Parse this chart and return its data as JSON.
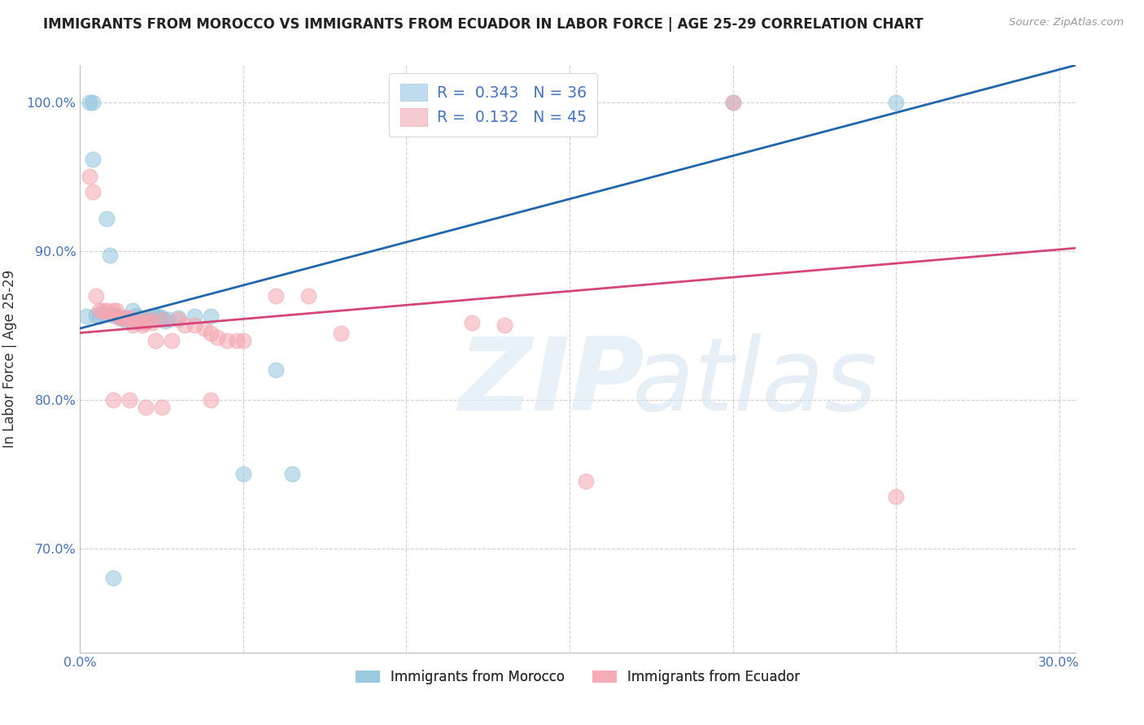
{
  "title": "IMMIGRANTS FROM MOROCCO VS IMMIGRANTS FROM ECUADOR IN LABOR FORCE | AGE 25-29 CORRELATION CHART",
  "source": "Source: ZipAtlas.com",
  "ylabel_text": "In Labor Force | Age 25-29",
  "x_min": 0.0,
  "x_max": 0.305,
  "y_min": 0.63,
  "y_max": 1.025,
  "y_ticks": [
    0.7,
    0.8,
    0.9,
    1.0
  ],
  "morocco_color": "#92c5de",
  "ecuador_color": "#f4a6b0",
  "morocco_line_color": "#2166ac",
  "ecuador_line_color": "#d6457a",
  "morocco_R": "0.343",
  "morocco_N": "36",
  "ecuador_R": "0.132",
  "ecuador_N": "45",
  "background_color": "#ffffff",
  "grid_color": "#cccccc",
  "morocco_line_x0": 0.0,
  "morocco_line_y0": 0.848,
  "morocco_line_x1": 0.305,
  "morocco_line_y1": 1.025,
  "ecuador_line_x0": 0.0,
  "ecuador_line_y0": 0.845,
  "ecuador_line_x1": 0.305,
  "ecuador_line_y1": 0.902,
  "morocco_x": [
    0.002,
    0.003,
    0.004,
    0.004,
    0.005,
    0.006,
    0.007,
    0.008,
    0.009,
    0.01,
    0.011,
    0.012,
    0.013,
    0.014,
    0.015,
    0.016,
    0.017,
    0.018,
    0.019,
    0.02,
    0.021,
    0.022,
    0.023,
    0.024,
    0.025,
    0.026,
    0.027,
    0.03,
    0.035,
    0.04,
    0.05,
    0.06,
    0.065,
    0.2,
    0.25,
    0.01
  ],
  "morocco_y": [
    0.856,
    1.0,
    1.0,
    0.962,
    0.857,
    0.856,
    0.858,
    0.922,
    0.897,
    0.857,
    0.857,
    0.855,
    0.855,
    0.853,
    0.854,
    0.86,
    0.857,
    0.855,
    0.854,
    0.853,
    0.854,
    0.856,
    0.856,
    0.856,
    0.855,
    0.853,
    0.854,
    0.855,
    0.856,
    0.856,
    0.75,
    0.82,
    0.75,
    1.0,
    1.0,
    0.68
  ],
  "ecuador_x": [
    0.003,
    0.004,
    0.005,
    0.006,
    0.007,
    0.008,
    0.009,
    0.01,
    0.011,
    0.012,
    0.013,
    0.014,
    0.015,
    0.016,
    0.017,
    0.018,
    0.019,
    0.02,
    0.021,
    0.022,
    0.023,
    0.025,
    0.028,
    0.03,
    0.032,
    0.035,
    0.038,
    0.04,
    0.042,
    0.045,
    0.048,
    0.05,
    0.06,
    0.07,
    0.08,
    0.12,
    0.13,
    0.155,
    0.2,
    0.25,
    0.01,
    0.015,
    0.02,
    0.025,
    0.04
  ],
  "ecuador_y": [
    0.95,
    0.94,
    0.87,
    0.86,
    0.86,
    0.86,
    0.858,
    0.86,
    0.86,
    0.855,
    0.855,
    0.855,
    0.855,
    0.85,
    0.854,
    0.852,
    0.85,
    0.852,
    0.854,
    0.852,
    0.84,
    0.854,
    0.84,
    0.854,
    0.85,
    0.85,
    0.848,
    0.845,
    0.842,
    0.84,
    0.84,
    0.84,
    0.87,
    0.87,
    0.845,
    0.852,
    0.85,
    0.745,
    1.0,
    0.735,
    0.8,
    0.8,
    0.795,
    0.795,
    0.8
  ]
}
